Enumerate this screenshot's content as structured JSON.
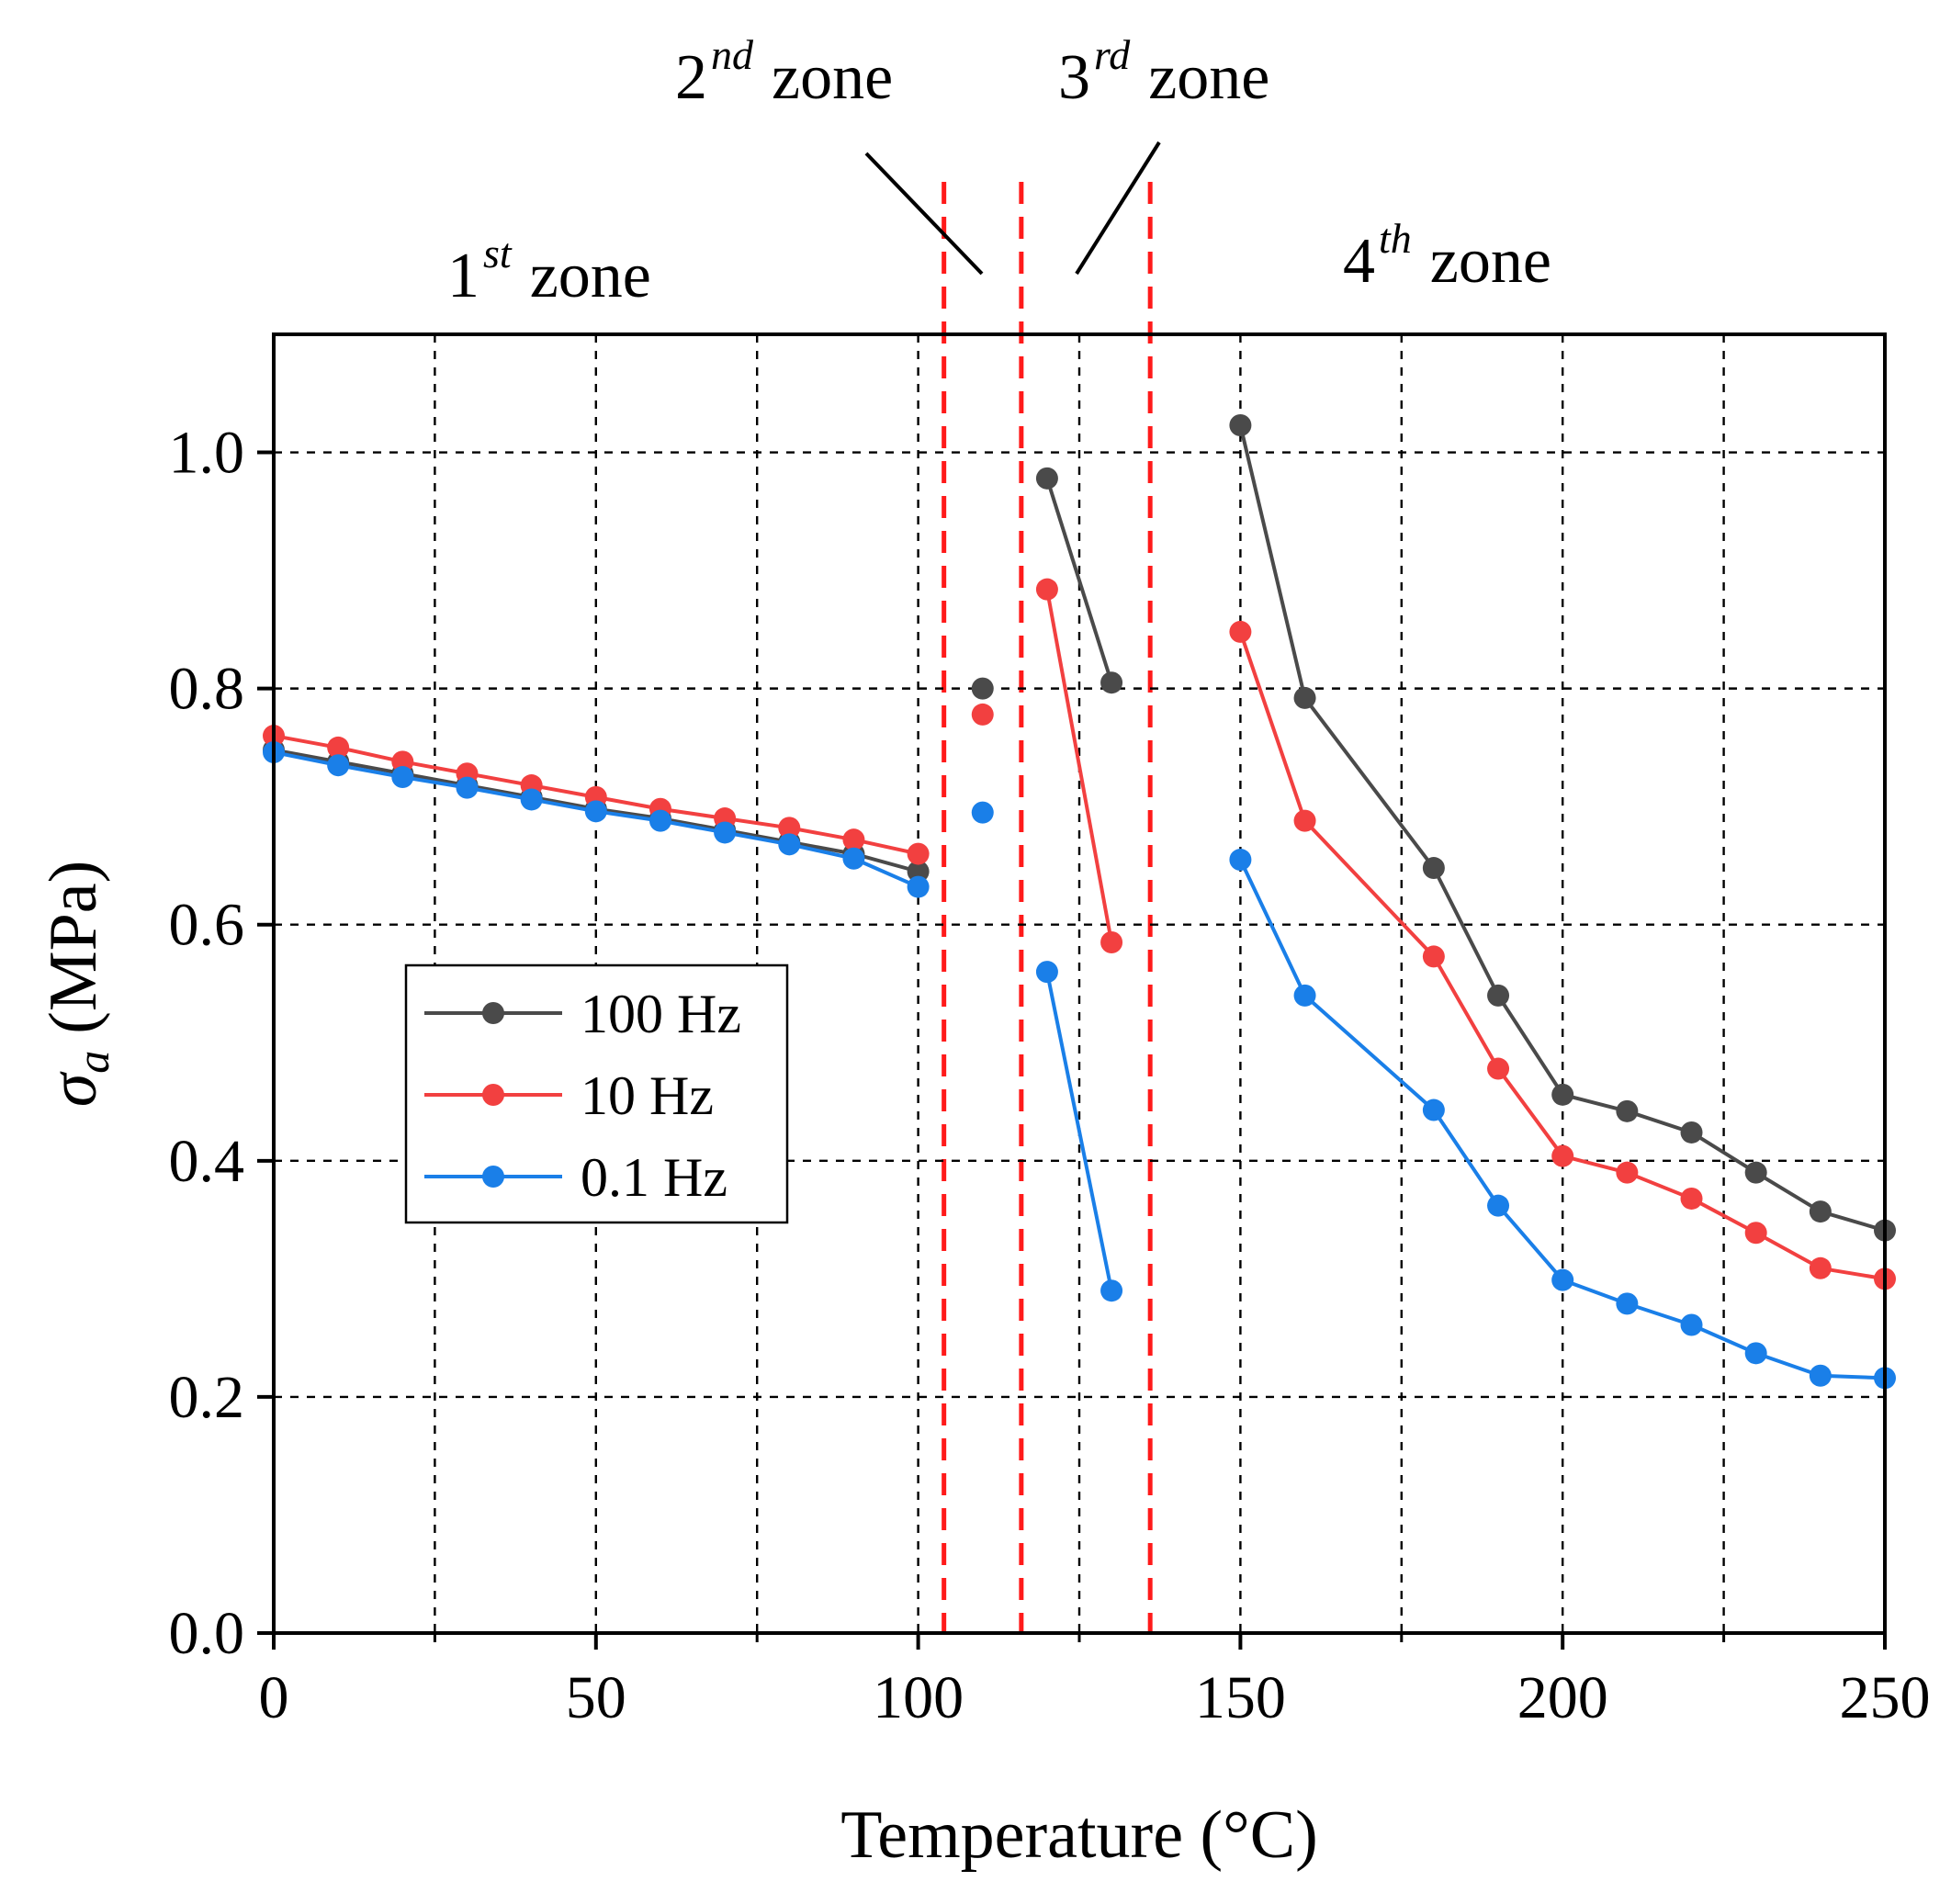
{
  "chart_data": {
    "type": "line",
    "xlabel": "Temperature (°C)",
    "ylabel_symbol": "σ",
    "ylabel_subscript": "a",
    "ylabel_unit": "(MPa)",
    "xlim": [
      0,
      250
    ],
    "ylim": [
      0,
      1.1
    ],
    "xticks": [
      0,
      50,
      100,
      150,
      200,
      250
    ],
    "xtick_labels": [
      "0",
      "50",
      "100",
      "150",
      "200",
      "250"
    ],
    "xminor": [
      25,
      75,
      125,
      175,
      225
    ],
    "yticks": [
      0,
      0.2,
      0.4,
      0.6,
      0.8,
      1.0
    ],
    "ytick_labels": [
      "0.0",
      "0.2",
      "0.4",
      "0.6",
      "0.8",
      "1.0"
    ],
    "grid": true,
    "legend_position": "middle-left",
    "zone_boundaries": [
      104,
      116,
      136
    ],
    "zones": [
      {
        "num": "1",
        "sup": "st",
        "word": "zone"
      },
      {
        "num": "2",
        "sup": "nd",
        "word": "zone"
      },
      {
        "num": "3",
        "sup": "rd",
        "word": "zone"
      },
      {
        "num": "4",
        "sup": "th",
        "word": "zone"
      }
    ],
    "series": [
      {
        "name": "100 Hz",
        "color": "#4a4a4a",
        "segments": [
          {
            "x": [
              0,
              10,
              20,
              30,
              40,
              50,
              60,
              70,
              80,
              90,
              100
            ],
            "y": [
              0.748,
              0.738,
              0.728,
              0.718,
              0.708,
              0.698,
              0.69,
              0.68,
              0.67,
              0.66,
              0.645
            ]
          },
          {
            "x": [
              110
            ],
            "y": [
              0.8
            ]
          },
          {
            "x": [
              120,
              130
            ],
            "y": [
              0.978,
              0.805
            ]
          },
          {
            "x": [
              150,
              160,
              180,
              190,
              200,
              210,
              220,
              230,
              240,
              250
            ],
            "y": [
              1.023,
              0.792,
              0.648,
              0.54,
              0.456,
              0.442,
              0.424,
              0.39,
              0.357,
              0.341
            ]
          }
        ]
      },
      {
        "name": "10 Hz",
        "color": "#f24040",
        "segments": [
          {
            "x": [
              0,
              10,
              20,
              30,
              40,
              50,
              60,
              70,
              80,
              90,
              100
            ],
            "y": [
              0.76,
              0.75,
              0.738,
              0.728,
              0.718,
              0.708,
              0.698,
              0.69,
              0.682,
              0.672,
              0.66
            ]
          },
          {
            "x": [
              110
            ],
            "y": [
              0.778
            ]
          },
          {
            "x": [
              120,
              130
            ],
            "y": [
              0.884,
              0.585
            ]
          },
          {
            "x": [
              150,
              160,
              180,
              190,
              200,
              210,
              220,
              230,
              240,
              250
            ],
            "y": [
              0.848,
              0.688,
              0.573,
              0.478,
              0.404,
              0.39,
              0.368,
              0.339,
              0.309,
              0.3
            ]
          }
        ]
      },
      {
        "name": "0.1 Hz",
        "color": "#1a7fe8",
        "segments": [
          {
            "x": [
              0,
              10,
              20,
              30,
              40,
              50,
              60,
              70,
              80,
              90,
              100
            ],
            "y": [
              0.746,
              0.735,
              0.725,
              0.716,
              0.706,
              0.696,
              0.688,
              0.678,
              0.668,
              0.656,
              0.632
            ]
          },
          {
            "x": [
              110
            ],
            "y": [
              0.695
            ]
          },
          {
            "x": [
              120,
              130
            ],
            "y": [
              0.56,
              0.29
            ]
          },
          {
            "x": [
              150,
              160,
              180,
              190,
              200,
              210,
              220,
              230,
              240,
              250
            ],
            "y": [
              0.655,
              0.54,
              0.443,
              0.362,
              0.299,
              0.279,
              0.261,
              0.237,
              0.218,
              0.216
            ]
          }
        ]
      }
    ]
  }
}
